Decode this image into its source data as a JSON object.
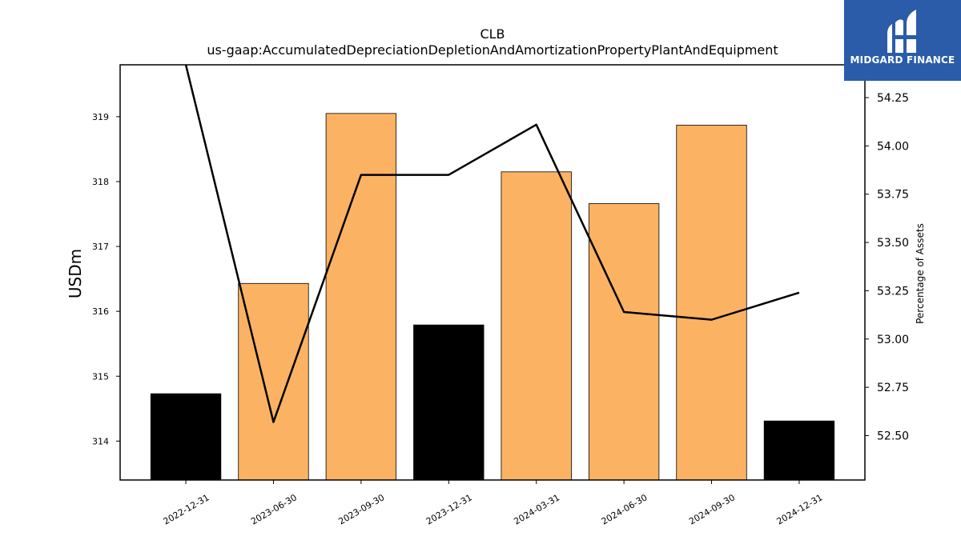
{
  "chart_data": {
    "type": "bar",
    "title": "CLB",
    "subtitle": "us-gaap:AccumulatedDepreciationDepletionAndAmortizationPropertyPlantAndEquipment",
    "ylabel": "USDm",
    "y2label": "Percentage of Assets",
    "categories": [
      "2022-12-31",
      "2023-06-30",
      "2023-09-30",
      "2023-12-31",
      "2024-03-31",
      "2024-06-30",
      "2024-09-30",
      "2024-12-31"
    ],
    "series": [
      {
        "values": [
          314.73,
          316.43,
          319.05,
          315.79,
          318.15,
          317.66,
          318.87,
          314.31
        ],
        "colors": [
          "#000000",
          "#fbb363",
          "#fbb363",
          "#000000",
          "#fbb363",
          "#fbb363",
          "#fbb363",
          "#000000"
        ]
      },
      {
        "axis": "right",
        "values": [
          54.42,
          52.57,
          53.85,
          53.85,
          54.11,
          53.14,
          53.1,
          53.24
        ],
        "color": "#000000"
      }
    ],
    "ylim": [
      313.4,
      319.8
    ],
    "ylim_right": [
      52.27,
      54.42
    ],
    "yticks": [
      314,
      315,
      316,
      317,
      318,
      319
    ],
    "yticks_right": [
      "52.50",
      "52.75",
      "53.00",
      "53.25",
      "53.50",
      "53.75",
      "54.00",
      "54.25"
    ]
  },
  "logo": {
    "text": "MIDGARD FINANCE",
    "bg": "#2a5caa"
  }
}
